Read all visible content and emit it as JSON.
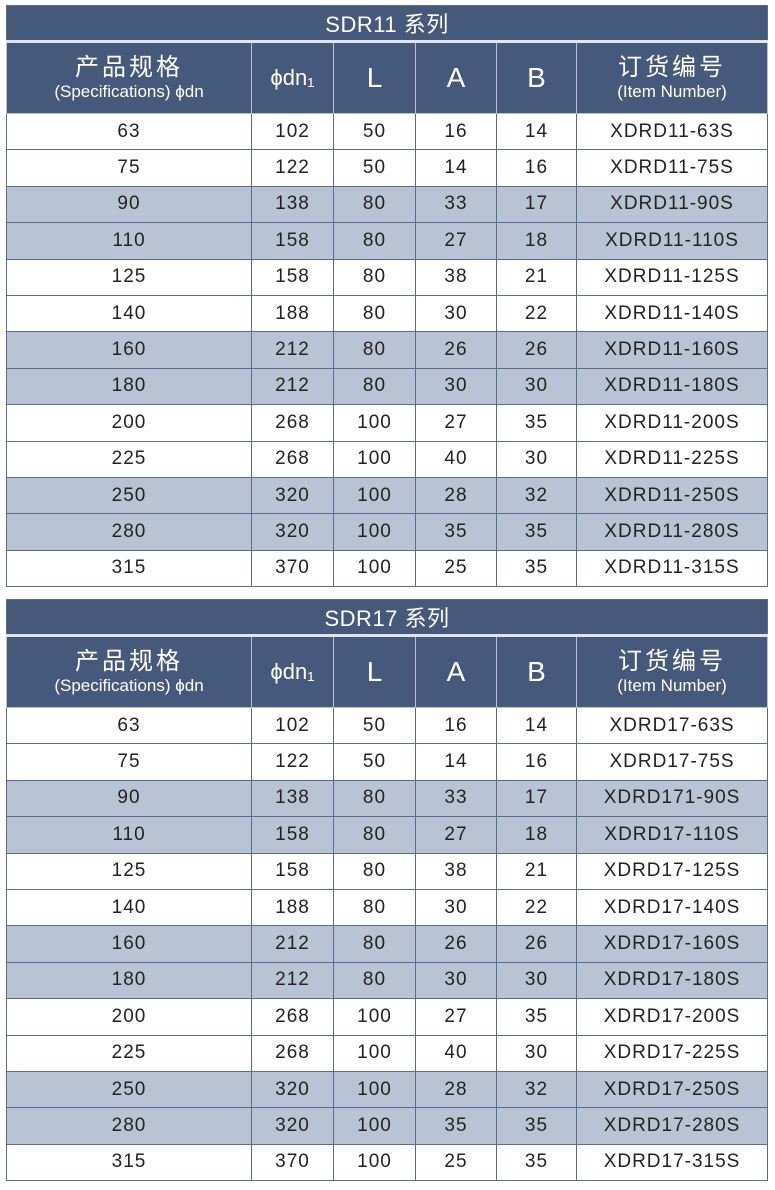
{
  "headers": {
    "spec_cn": "产品规格",
    "spec_en": "(Specifications) ϕdn",
    "dn1": "ϕdn₁",
    "L": "L",
    "A": "A",
    "B": "B",
    "item_cn": "订货编号",
    "item_en": "(Item Number)"
  },
  "colors": {
    "header": "#45597a",
    "shaded_row": "#b8c4d6"
  },
  "tables": [
    {
      "title": "SDR11 系列",
      "rows": [
        [
          "63",
          "102",
          "50",
          "16",
          "14",
          "XDRD11-63S"
        ],
        [
          "75",
          "122",
          "50",
          "14",
          "16",
          "XDRD11-75S"
        ],
        [
          "90",
          "138",
          "80",
          "33",
          "17",
          "XDRD11-90S"
        ],
        [
          "110",
          "158",
          "80",
          "27",
          "18",
          "XDRD11-110S"
        ],
        [
          "125",
          "158",
          "80",
          "38",
          "21",
          "XDRD11-125S"
        ],
        [
          "140",
          "188",
          "80",
          "30",
          "22",
          "XDRD11-140S"
        ],
        [
          "160",
          "212",
          "80",
          "26",
          "26",
          "XDRD11-160S"
        ],
        [
          "180",
          "212",
          "80",
          "30",
          "30",
          "XDRD11-180S"
        ],
        [
          "200",
          "268",
          "100",
          "27",
          "35",
          "XDRD11-200S"
        ],
        [
          "225",
          "268",
          "100",
          "40",
          "30",
          "XDRD11-225S"
        ],
        [
          "250",
          "320",
          "100",
          "28",
          "32",
          "XDRD11-250S"
        ],
        [
          "280",
          "320",
          "100",
          "35",
          "35",
          "XDRD11-280S"
        ],
        [
          "315",
          "370",
          "100",
          "25",
          "35",
          "XDRD11-315S"
        ]
      ]
    },
    {
      "title": "SDR17 系列",
      "rows": [
        [
          "63",
          "102",
          "50",
          "16",
          "14",
          "XDRD17-63S"
        ],
        [
          "75",
          "122",
          "50",
          "14",
          "16",
          "XDRD17-75S"
        ],
        [
          "90",
          "138",
          "80",
          "33",
          "17",
          "XDRD171-90S"
        ],
        [
          "110",
          "158",
          "80",
          "27",
          "18",
          "XDRD17-110S"
        ],
        [
          "125",
          "158",
          "80",
          "38",
          "21",
          "XDRD17-125S"
        ],
        [
          "140",
          "188",
          "80",
          "30",
          "22",
          "XDRD17-140S"
        ],
        [
          "160",
          "212",
          "80",
          "26",
          "26",
          "XDRD17-160S"
        ],
        [
          "180",
          "212",
          "80",
          "30",
          "30",
          "XDRD17-180S"
        ],
        [
          "200",
          "268",
          "100",
          "27",
          "35",
          "XDRD17-200S"
        ],
        [
          "225",
          "268",
          "100",
          "40",
          "30",
          "XDRD17-225S"
        ],
        [
          "250",
          "320",
          "100",
          "28",
          "32",
          "XDRD17-250S"
        ],
        [
          "280",
          "320",
          "100",
          "35",
          "35",
          "XDRD17-280S"
        ],
        [
          "315",
          "370",
          "100",
          "25",
          "35",
          "XDRD17-315S"
        ]
      ]
    }
  ]
}
